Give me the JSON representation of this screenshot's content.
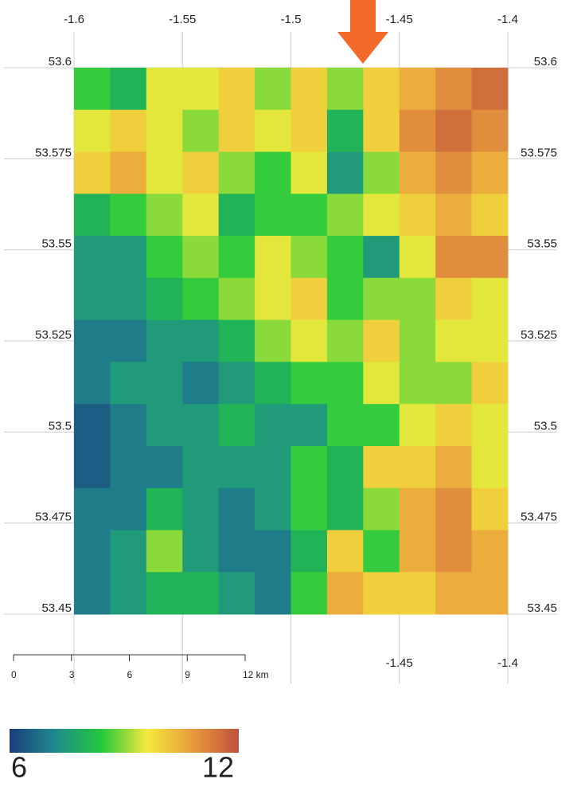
{
  "map": {
    "xlim": [
      -1.6,
      -1.4
    ],
    "ylim": [
      53.45,
      53.6
    ],
    "xticks": [
      -1.6,
      -1.55,
      -1.5,
      -1.45,
      -1.4
    ],
    "bottom_xticks": [
      -1.45,
      -1.4
    ],
    "yticks": [
      53.6,
      53.575,
      53.55,
      53.525,
      53.5,
      53.475,
      53.45
    ],
    "raster": [
      [
        8.5,
        8,
        9.5,
        9.5,
        10,
        9,
        10,
        9,
        10,
        10.5,
        11,
        11.5
      ],
      [
        9.5,
        10,
        9.5,
        9,
        10,
        9.5,
        10,
        8,
        10,
        11,
        11.5,
        11
      ],
      [
        10,
        10.5,
        9.5,
        10,
        9,
        8.5,
        9.5,
        7.5,
        9,
        10.5,
        11,
        10.5
      ],
      [
        8,
        8.5,
        9,
        9.5,
        8,
        8.5,
        8.5,
        9,
        9.5,
        10,
        10.5,
        10
      ],
      [
        7.5,
        7.5,
        8.5,
        9,
        8.5,
        9.5,
        9,
        8.5,
        7.5,
        9.5,
        11,
        11
      ],
      [
        7.5,
        7.5,
        8,
        8.5,
        9,
        9.5,
        10,
        8.5,
        9,
        9,
        10,
        9.5
      ],
      [
        7,
        7,
        7.5,
        7.5,
        8,
        9,
        9.5,
        9,
        10,
        9,
        9.5,
        9.5
      ],
      [
        7,
        7.5,
        7.5,
        7,
        7.5,
        8,
        8.5,
        8.5,
        9.5,
        9,
        9,
        10
      ],
      [
        6.5,
        7,
        7.5,
        7.5,
        8,
        7.5,
        7.5,
        8.5,
        8.5,
        9.5,
        10,
        9.5
      ],
      [
        6.5,
        7,
        7,
        7.5,
        7.5,
        7.5,
        8.5,
        8,
        10,
        10,
        10.5,
        9.5
      ],
      [
        7,
        7,
        8,
        7.5,
        7,
        7.5,
        8.5,
        8,
        9,
        10.5,
        11,
        10
      ],
      [
        7,
        7.5,
        9,
        7.5,
        7,
        7,
        8,
        10,
        8.5,
        10.5,
        11,
        10.5
      ],
      [
        7,
        7.5,
        8,
        8,
        7.5,
        7,
        8.5,
        10.5,
        10,
        10,
        10.5,
        10.5
      ]
    ]
  },
  "scale_bar": {
    "ticks": [
      0,
      3,
      6,
      9,
      {
        "value": 12,
        "label": "12 km"
      }
    ]
  },
  "colorbar": {
    "lim": [
      6,
      12
    ],
    "ticks": [
      6,
      12
    ],
    "colors": [
      "#1b3c7c",
      "#1f8a8c",
      "#22c93c",
      "#f4ea3c",
      "#e89a3c",
      "#c0503c"
    ]
  }
}
